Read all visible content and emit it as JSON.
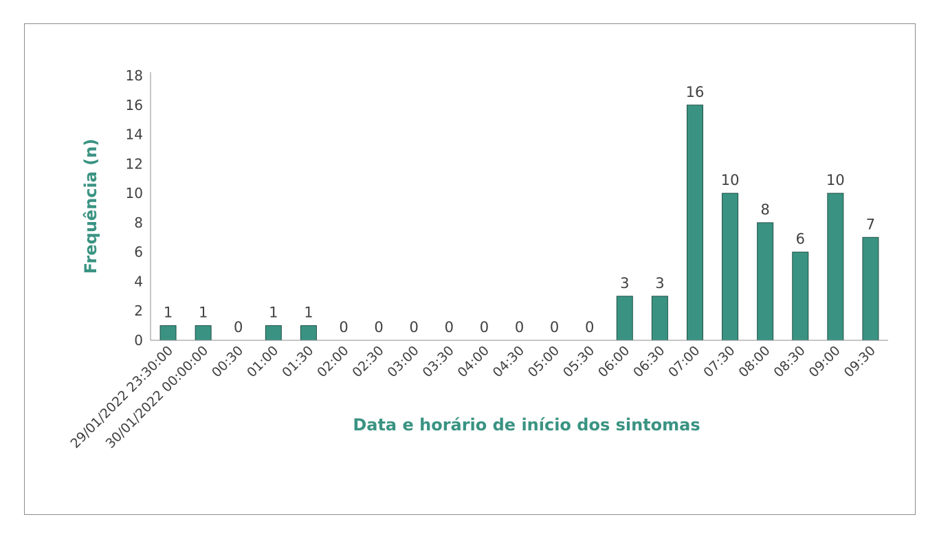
{
  "chart_data": {
    "type": "bar",
    "title": "",
    "xlabel": "Data e horário de início dos sintomas",
    "ylabel": "Frequência (n)",
    "ylim": [
      0,
      18
    ],
    "yticks": [
      0,
      2,
      4,
      6,
      8,
      10,
      12,
      14,
      16,
      18
    ],
    "grid": false,
    "legend": "none",
    "bar_color": "#3a9382",
    "categories": [
      "29/01/2022 23:30:00",
      "30/01/2022 00:00:00",
      "00:30",
      "01:00",
      "01:30",
      "02:00",
      "02:30",
      "03:00",
      "03:30",
      "04:00",
      "04:30",
      "05:00",
      "05:30",
      "06:00",
      "06:30",
      "07:00",
      "07:30",
      "08:00",
      "08:30",
      "09:00",
      "09:30"
    ],
    "values": [
      1,
      1,
      0,
      1,
      1,
      0,
      0,
      0,
      0,
      0,
      0,
      0,
      0,
      3,
      3,
      16,
      10,
      8,
      6,
      10,
      7
    ]
  }
}
